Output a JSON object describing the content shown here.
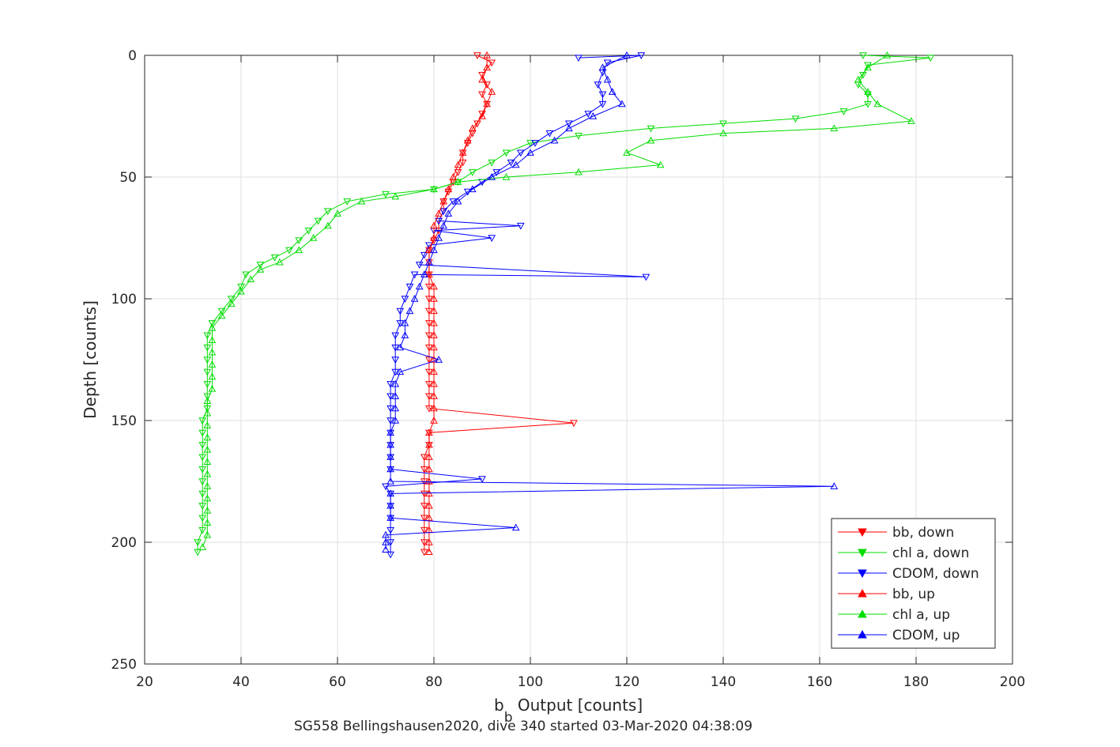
{
  "chart_data": {
    "type": "scatter",
    "xlabel_main": "b",
    "xlabel_sub": "b",
    "xlabel_rest": " Output [counts]",
    "ylabel": "Depth [counts]",
    "subtitle": "SG558 Bellingshausen2020, dive 340 started 03-Mar-2020 04:38:09",
    "xlim": [
      20,
      200
    ],
    "ylim": [
      0,
      250
    ],
    "y_reversed": true,
    "grid": true,
    "legend_position": "bottom-right",
    "xticks": [
      20,
      40,
      60,
      80,
      100,
      120,
      140,
      160,
      180,
      200
    ],
    "yticks": [
      0,
      50,
      100,
      150,
      200,
      250
    ],
    "series": [
      {
        "name": "bb, down",
        "color": "#ff0000",
        "marker": "triangle-down",
        "points": [
          [
            89,
            0
          ],
          [
            92,
            3
          ],
          [
            90,
            8
          ],
          [
            91,
            12
          ],
          [
            90,
            16
          ],
          [
            91,
            20
          ],
          [
            90,
            24
          ],
          [
            89,
            28
          ],
          [
            88,
            32
          ],
          [
            87,
            36
          ],
          [
            86,
            40
          ],
          [
            86,
            44
          ],
          [
            85,
            48
          ],
          [
            84,
            52
          ],
          [
            83,
            56
          ],
          [
            82,
            60
          ],
          [
            82,
            64
          ],
          [
            81,
            68
          ],
          [
            81,
            72
          ],
          [
            80,
            76
          ],
          [
            79,
            80
          ],
          [
            79,
            85
          ],
          [
            79,
            90
          ],
          [
            79,
            95
          ],
          [
            79,
            100
          ],
          [
            79,
            105
          ],
          [
            79,
            110
          ],
          [
            79,
            115
          ],
          [
            79,
            120
          ],
          [
            79,
            125
          ],
          [
            79,
            130
          ],
          [
            79,
            135
          ],
          [
            79,
            140
          ],
          [
            79,
            145
          ],
          [
            109,
            151
          ],
          [
            79,
            155
          ],
          [
            79,
            160
          ],
          [
            78,
            165
          ],
          [
            78,
            170
          ],
          [
            78,
            175
          ],
          [
            78,
            180
          ],
          [
            78,
            185
          ],
          [
            78,
            190
          ],
          [
            78,
            195
          ],
          [
            78,
            200
          ],
          [
            78,
            204
          ]
        ]
      },
      {
        "name": "chl a, down",
        "color": "#00dd00",
        "marker": "triangle-down",
        "points": [
          [
            169,
            0
          ],
          [
            183,
            1
          ],
          [
            170,
            4
          ],
          [
            169,
            8
          ],
          [
            168,
            12
          ],
          [
            170,
            16
          ],
          [
            170,
            20
          ],
          [
            165,
            23
          ],
          [
            155,
            26
          ],
          [
            140,
            28
          ],
          [
            125,
            30
          ],
          [
            110,
            33
          ],
          [
            100,
            36
          ],
          [
            95,
            40
          ],
          [
            92,
            44
          ],
          [
            88,
            48
          ],
          [
            85,
            52
          ],
          [
            80,
            55
          ],
          [
            70,
            57
          ],
          [
            62,
            60
          ],
          [
            58,
            64
          ],
          [
            56,
            68
          ],
          [
            54,
            72
          ],
          [
            52,
            76
          ],
          [
            50,
            80
          ],
          [
            47,
            83
          ],
          [
            44,
            86
          ],
          [
            41,
            90
          ],
          [
            40,
            95
          ],
          [
            38,
            100
          ],
          [
            36,
            105
          ],
          [
            34,
            110
          ],
          [
            33,
            115
          ],
          [
            33,
            120
          ],
          [
            33,
            125
          ],
          [
            33,
            130
          ],
          [
            33,
            135
          ],
          [
            33,
            140
          ],
          [
            33,
            145
          ],
          [
            32,
            150
          ],
          [
            32,
            155
          ],
          [
            32,
            160
          ],
          [
            32,
            165
          ],
          [
            32,
            170
          ],
          [
            32,
            175
          ],
          [
            32,
            180
          ],
          [
            32,
            185
          ],
          [
            32,
            190
          ],
          [
            32,
            195
          ],
          [
            31,
            200
          ],
          [
            31,
            204
          ]
        ]
      },
      {
        "name": "CDOM, down",
        "color": "#0000ff",
        "marker": "triangle-down",
        "points": [
          [
            110,
            1
          ],
          [
            123,
            0
          ],
          [
            116,
            3
          ],
          [
            115,
            7
          ],
          [
            114,
            12
          ],
          [
            115,
            16
          ],
          [
            115,
            20
          ],
          [
            112,
            24
          ],
          [
            108,
            28
          ],
          [
            104,
            32
          ],
          [
            101,
            36
          ],
          [
            98,
            40
          ],
          [
            96,
            44
          ],
          [
            93,
            48
          ],
          [
            90,
            52
          ],
          [
            87,
            56
          ],
          [
            84,
            60
          ],
          [
            82,
            64
          ],
          [
            81,
            68
          ],
          [
            98,
            70
          ],
          [
            80,
            72
          ],
          [
            92,
            75
          ],
          [
            79,
            78
          ],
          [
            78,
            82
          ],
          [
            77,
            86
          ],
          [
            124,
            91
          ],
          [
            76,
            90
          ],
          [
            75,
            95
          ],
          [
            74,
            100
          ],
          [
            73,
            105
          ],
          [
            73,
            110
          ],
          [
            72,
            115
          ],
          [
            72,
            120
          ],
          [
            72,
            125
          ],
          [
            72,
            130
          ],
          [
            71,
            135
          ],
          [
            71,
            140
          ],
          [
            71,
            145
          ],
          [
            71,
            150
          ],
          [
            71,
            155
          ],
          [
            71,
            160
          ],
          [
            71,
            165
          ],
          [
            71,
            170
          ],
          [
            90,
            174
          ],
          [
            70,
            177
          ],
          [
            71,
            180
          ],
          [
            71,
            185
          ],
          [
            71,
            190
          ],
          [
            71,
            195
          ],
          [
            71,
            200
          ],
          [
            71,
            205
          ]
        ]
      },
      {
        "name": "bb, up",
        "color": "#ff0000",
        "marker": "triangle-up",
        "points": [
          [
            91,
            0
          ],
          [
            91,
            5
          ],
          [
            90,
            10
          ],
          [
            92,
            15
          ],
          [
            91,
            20
          ],
          [
            90,
            25
          ],
          [
            88,
            30
          ],
          [
            87,
            35
          ],
          [
            86,
            40
          ],
          [
            85,
            45
          ],
          [
            84,
            50
          ],
          [
            83,
            55
          ],
          [
            82,
            60
          ],
          [
            81,
            65
          ],
          [
            80,
            70
          ],
          [
            80,
            75
          ],
          [
            79,
            80
          ],
          [
            79,
            85
          ],
          [
            79,
            90
          ],
          [
            80,
            95
          ],
          [
            80,
            100
          ],
          [
            80,
            105
          ],
          [
            80,
            110
          ],
          [
            80,
            115
          ],
          [
            80,
            120
          ],
          [
            80,
            125
          ],
          [
            80,
            130
          ],
          [
            80,
            135
          ],
          [
            80,
            140
          ],
          [
            80,
            145
          ],
          [
            80,
            150
          ],
          [
            79,
            155
          ],
          [
            79,
            160
          ],
          [
            79,
            165
          ],
          [
            79,
            170
          ],
          [
            79,
            175
          ],
          [
            79,
            180
          ],
          [
            79,
            185
          ],
          [
            79,
            190
          ],
          [
            79,
            195
          ],
          [
            79,
            200
          ],
          [
            79,
            204
          ]
        ]
      },
      {
        "name": "chl a, up",
        "color": "#00dd00",
        "marker": "triangle-up",
        "points": [
          [
            174,
            0
          ],
          [
            170,
            5
          ],
          [
            168,
            10
          ],
          [
            170,
            15
          ],
          [
            172,
            20
          ],
          [
            179,
            27
          ],
          [
            163,
            30
          ],
          [
            140,
            32
          ],
          [
            125,
            35
          ],
          [
            120,
            40
          ],
          [
            127,
            45
          ],
          [
            110,
            48
          ],
          [
            95,
            50
          ],
          [
            85,
            52
          ],
          [
            80,
            55
          ],
          [
            72,
            58
          ],
          [
            65,
            60
          ],
          [
            60,
            65
          ],
          [
            58,
            70
          ],
          [
            55,
            75
          ],
          [
            52,
            80
          ],
          [
            48,
            85
          ],
          [
            44,
            88
          ],
          [
            42,
            92
          ],
          [
            40,
            97
          ],
          [
            38,
            102
          ],
          [
            36,
            107
          ],
          [
            34,
            112
          ],
          [
            34,
            117
          ],
          [
            34,
            122
          ],
          [
            34,
            127
          ],
          [
            34,
            132
          ],
          [
            34,
            137
          ],
          [
            33,
            142
          ],
          [
            33,
            147
          ],
          [
            33,
            152
          ],
          [
            33,
            157
          ],
          [
            33,
            162
          ],
          [
            33,
            167
          ],
          [
            33,
            172
          ],
          [
            33,
            177
          ],
          [
            33,
            182
          ],
          [
            33,
            187
          ],
          [
            33,
            192
          ],
          [
            33,
            197
          ],
          [
            32,
            202
          ]
        ]
      },
      {
        "name": "CDOM, up",
        "color": "#0000ff",
        "marker": "triangle-up",
        "points": [
          [
            120,
            0
          ],
          [
            115,
            5
          ],
          [
            116,
            10
          ],
          [
            117,
            15
          ],
          [
            119,
            20
          ],
          [
            113,
            25
          ],
          [
            108,
            30
          ],
          [
            105,
            35
          ],
          [
            100,
            40
          ],
          [
            97,
            45
          ],
          [
            92,
            50
          ],
          [
            88,
            55
          ],
          [
            85,
            60
          ],
          [
            83,
            65
          ],
          [
            82,
            70
          ],
          [
            81,
            75
          ],
          [
            80,
            80
          ],
          [
            79,
            85
          ],
          [
            78,
            90
          ],
          [
            77,
            95
          ],
          [
            76,
            100
          ],
          [
            75,
            105
          ],
          [
            74,
            110
          ],
          [
            74,
            115
          ],
          [
            73,
            120
          ],
          [
            81,
            125
          ],
          [
            73,
            130
          ],
          [
            72,
            135
          ],
          [
            72,
            140
          ],
          [
            72,
            145
          ],
          [
            72,
            150
          ],
          [
            71,
            155
          ],
          [
            71,
            160
          ],
          [
            71,
            165
          ],
          [
            71,
            170
          ],
          [
            71,
            175
          ],
          [
            163,
            177
          ],
          [
            71,
            180
          ],
          [
            71,
            185
          ],
          [
            71,
            190
          ],
          [
            97,
            194
          ],
          [
            70,
            197
          ],
          [
            70,
            200
          ],
          [
            70,
            203
          ]
        ]
      }
    ]
  }
}
